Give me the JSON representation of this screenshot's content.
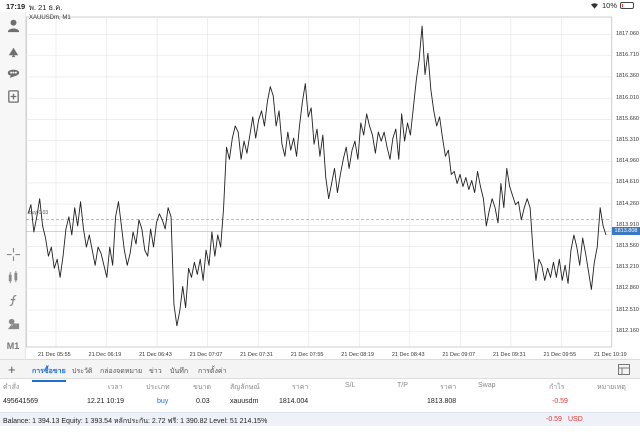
{
  "status": {
    "time": "17:19",
    "date": "พ. 21 ธ.ค.",
    "battery": "10%",
    "battery_level": 0.1
  },
  "chart": {
    "symbol_label": "XAUUSDm, M1",
    "buy_line_label": "buy 0.03",
    "current_price_label": "1813.808",
    "colors": {
      "line": "#222222",
      "grid": "#e4e4e4",
      "current_price": "#3a78c2",
      "buy_line": "#999999"
    }
  },
  "chart_data": {
    "type": "line",
    "title": "XAUUSDm, M1",
    "xlabel": "",
    "ylabel": "",
    "ylim": [
      1811.9,
      1817.35
    ],
    "y_ticks": [
      "1817.060",
      "1816.710",
      "1816.360",
      "1816.010",
      "1815.660",
      "1815.310",
      "1814.960",
      "1814.610",
      "1814.260",
      "1813.910",
      "1813.560",
      "1813.210",
      "1812.860",
      "1812.510",
      "1812.160"
    ],
    "x_ticks": [
      "21 Dec 05:55",
      "21 Dec 06:19",
      "21 Dec 06:43",
      "21 Dec 07:07",
      "21 Dec 07:31",
      "21 Dec 07:55",
      "21 Dec 08:19",
      "21 Dec 08:43",
      "21 Dec 09:07",
      "21 Dec 09:31",
      "21 Dec 09:55",
      "21 Dec 10:19"
    ],
    "buy_price": 1814.004,
    "current_price": 1813.808,
    "series": [
      {
        "values": [
          1814.1,
          1814.25,
          1813.8,
          1814.05,
          1814.35,
          1813.9,
          1813.7,
          1813.4,
          1813.55,
          1813.2,
          1813.35,
          1813.05,
          1813.4,
          1813.85,
          1814.05,
          1813.75,
          1814.2,
          1813.9,
          1814.3,
          1813.85,
          1813.55,
          1813.75,
          1813.5,
          1813.25,
          1813.55,
          1813.45,
          1813.25,
          1813.05,
          1813.55,
          1813.25,
          1814.05,
          1814.3,
          1813.9,
          1813.5,
          1813.25,
          1813.45,
          1813.8,
          1813.6,
          1814.0,
          1813.85,
          1813.5,
          1813.4,
          1813.85,
          1813.55,
          1813.95,
          1814.1,
          1814.0,
          1813.85,
          1814.2,
          1814.05,
          1812.6,
          1812.25,
          1812.5,
          1812.9,
          1812.55,
          1813.2,
          1813.05,
          1813.3,
          1813.1,
          1813.35,
          1813.0,
          1813.5,
          1813.25,
          1813.8,
          1813.4,
          1813.75,
          1813.55,
          1814.2,
          1815.2,
          1815.0,
          1815.35,
          1815.55,
          1815.45,
          1815.0,
          1815.3,
          1815.1,
          1815.4,
          1815.7,
          1815.35,
          1815.65,
          1815.8,
          1815.55,
          1815.95,
          1816.2,
          1816.05,
          1815.55,
          1815.8,
          1815.25,
          1815.05,
          1815.45,
          1815.15,
          1815.35,
          1815.05,
          1815.55,
          1815.95,
          1816.25,
          1815.7,
          1815.85,
          1815.25,
          1815.5,
          1815.05,
          1815.4,
          1814.7,
          1814.35,
          1814.6,
          1814.85,
          1814.45,
          1814.75,
          1815.0,
          1815.2,
          1814.85,
          1815.15,
          1815.3,
          1815.0,
          1815.6,
          1815.4,
          1815.75,
          1815.55,
          1815.4,
          1815.1,
          1815.45,
          1815.3,
          1815.45,
          1815.2,
          1815.0,
          1815.35,
          1815.5,
          1815.0,
          1815.75,
          1815.3,
          1815.6,
          1815.4,
          1815.85,
          1816.3,
          1816.65,
          1817.2,
          1816.4,
          1816.75,
          1816.15,
          1815.8,
          1815.55,
          1815.7,
          1815.35,
          1815.05,
          1815.15,
          1814.75,
          1814.8,
          1814.6,
          1814.75,
          1814.55,
          1814.7,
          1814.5,
          1814.65,
          1814.45,
          1814.8,
          1814.55,
          1814.35,
          1813.9,
          1814.15,
          1814.35,
          1814.2,
          1813.95,
          1814.6,
          1814.2,
          1814.85,
          1814.55,
          1814.4,
          1814.25,
          1814.3,
          1814.0,
          1814.2,
          1814.35,
          1814.2,
          1813.5,
          1813.0,
          1813.35,
          1813.25,
          1813.0,
          1813.2,
          1813.05,
          1813.3,
          1813.05,
          1813.35,
          1813.0,
          1813.25,
          1812.95,
          1813.5,
          1813.75,
          1813.55,
          1813.25,
          1813.7,
          1813.45,
          1813.15,
          1812.85,
          1813.3,
          1813.55,
          1814.2,
          1813.9,
          1813.75
        ]
      }
    ]
  },
  "tabs": [
    {
      "label": "การซื้อขาย",
      "active": true
    },
    {
      "label": "ประวัติ"
    },
    {
      "label": "กล่องจดหมาย"
    },
    {
      "label": "ข่าว"
    },
    {
      "label": "บันทึก"
    },
    {
      "label": "การตั้งค่า"
    }
  ],
  "table": {
    "headers": {
      "ticket": "คำสั่ง",
      "time": "เวลา",
      "type": "ประเภท",
      "volume": "ขนาด",
      "symbol": "สัญลักษณ์",
      "price": "ราคา",
      "sl": "S/L",
      "tp": "T/P",
      "cur_price": "ราคา",
      "swap": "Swap",
      "profit": "กำไร",
      "comment": "หมายเหตุ"
    },
    "row": {
      "ticket": "495641569",
      "time": "12.21 10:19",
      "type": "buy",
      "volume": "0.03",
      "symbol": "xauusdm",
      "price": "1814.004",
      "cur_price": "1813.808",
      "profit": "-0.59"
    }
  },
  "balance": {
    "text": "Balance: 1 394.13 Equity: 1 393.54 หลักประกัน: 2.72 ฟรี: 1 390.82 Level: 51 214.15%",
    "profit": "-0.59",
    "currency": "USD"
  }
}
